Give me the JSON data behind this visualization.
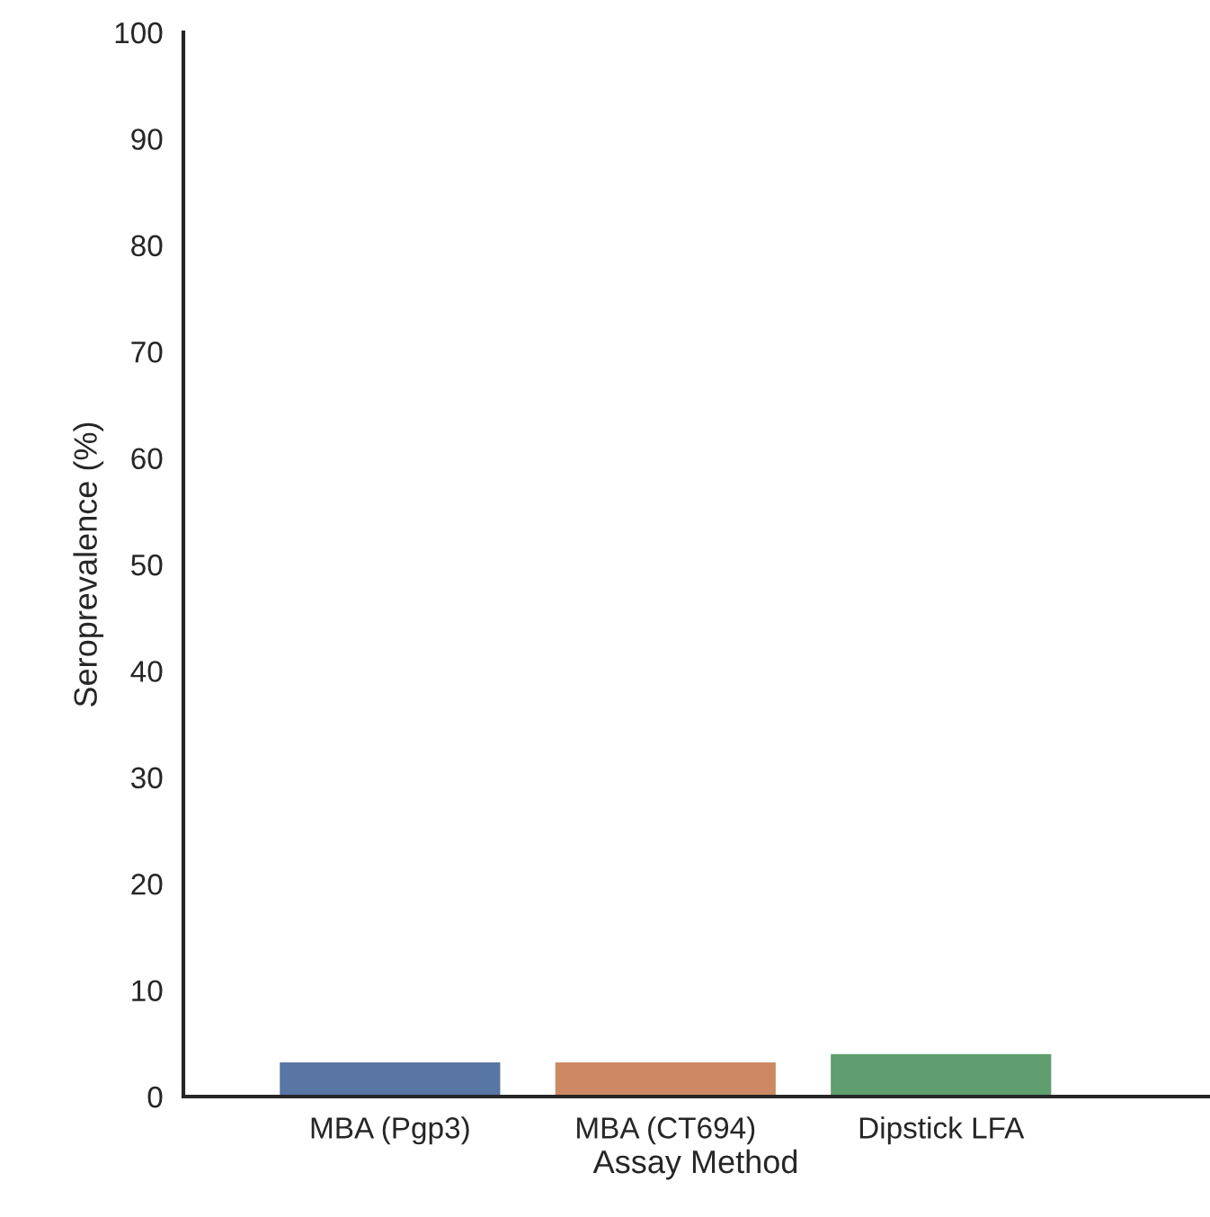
{
  "chart_data": {
    "type": "bar",
    "xlabel": "Assay Method",
    "ylabel": "Seroprevalence (%)",
    "categories": [
      "MBA (Pgp3)",
      "MBA (CT694)",
      "Dipstick LFA"
    ],
    "values": [
      3.2,
      3.2,
      4.0
    ],
    "colors": [
      "#5875a4",
      "#cc8963",
      "#5f9e6e"
    ],
    "ylim": [
      0,
      100
    ],
    "yticks": [
      0,
      10,
      20,
      30,
      40,
      50,
      60,
      70,
      80,
      90,
      100
    ],
    "grid": false
  }
}
